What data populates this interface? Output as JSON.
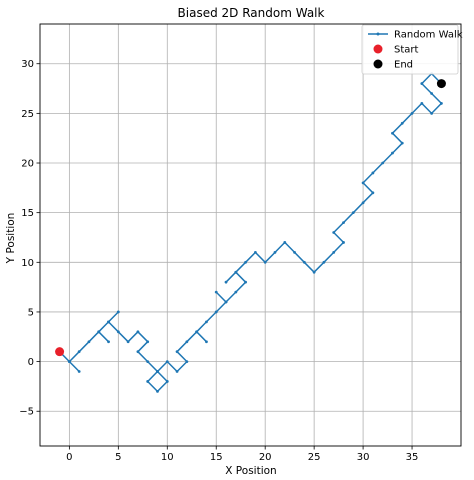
{
  "chart_data": {
    "type": "line",
    "title": "Biased 2D Random Walk",
    "xlabel": "X Position",
    "ylabel": "Y Position",
    "xlim": [
      -3,
      40
    ],
    "ylim": [
      -8.5,
      34
    ],
    "xticks": [
      0,
      5,
      10,
      15,
      20,
      25,
      30,
      35
    ],
    "yticks": [
      -5,
      0,
      5,
      10,
      15,
      20,
      25,
      30
    ],
    "grid": true,
    "legend_position": "top-right",
    "series": [
      {
        "name": "Random Walk",
        "color": "#1f77b4",
        "x": [
          -1,
          0,
          1,
          0,
          1,
          2,
          3,
          4,
          3,
          4,
          5,
          4,
          5,
          6,
          7,
          8,
          7,
          8,
          9,
          8,
          9,
          10,
          9,
          10,
          11,
          12,
          11,
          12,
          13,
          14,
          13,
          14,
          15,
          16,
          15,
          16,
          17,
          18,
          17,
          16,
          17,
          18,
          19,
          20,
          21,
          22,
          23,
          24,
          25,
          26,
          27,
          28,
          27,
          28,
          29,
          30,
          31,
          30,
          31,
          32,
          33,
          34,
          33,
          34,
          35,
          36,
          37,
          38,
          37,
          36,
          37,
          38
        ],
        "y": [
          1,
          0,
          -1,
          0,
          1,
          2,
          3,
          2,
          3,
          4,
          5,
          4,
          3,
          2,
          3,
          2,
          1,
          0,
          -1,
          -2,
          -3,
          -2,
          -1,
          0,
          -1,
          0,
          1,
          2,
          3,
          2,
          3,
          4,
          5,
          6,
          7,
          6,
          7,
          8,
          9,
          8,
          9,
          10,
          11,
          10,
          11,
          12,
          11,
          10,
          9,
          10,
          11,
          12,
          13,
          14,
          15,
          16,
          17,
          18,
          19,
          20,
          21,
          22,
          23,
          24,
          25,
          26,
          25,
          26,
          27,
          28,
          29,
          28
        ]
      }
    ],
    "markers": [
      {
        "name": "Start",
        "x": -1,
        "y": 1,
        "color": "#e8202a"
      },
      {
        "name": "End",
        "x": 38,
        "y": 28,
        "color": "#000000"
      }
    ]
  }
}
